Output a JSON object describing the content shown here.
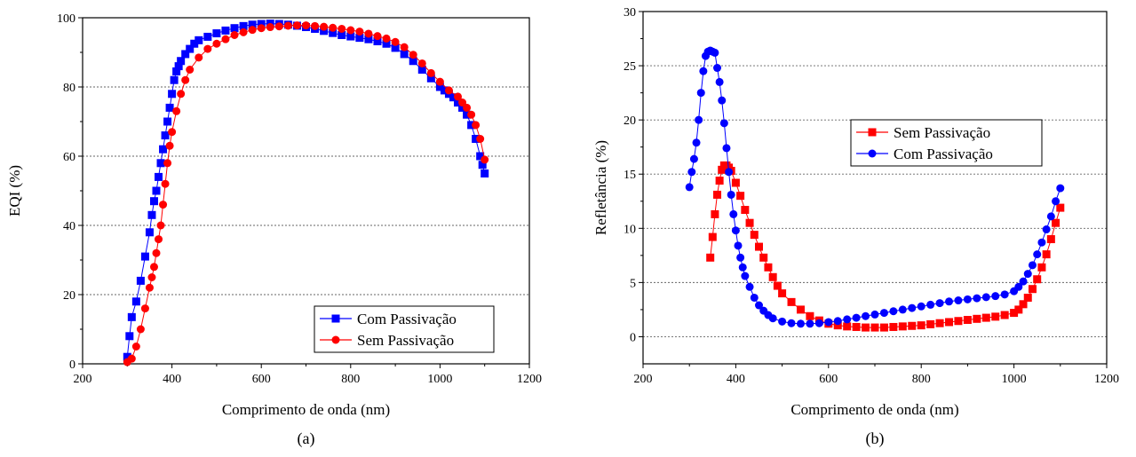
{
  "chart_data": [
    {
      "type": "scatter",
      "panel_label": "(a)",
      "xlabel": "Comprimento de onda (nm)",
      "ylabel": "EQI (%)",
      "xlim": [
        200,
        1200
      ],
      "ylim": [
        0,
        100
      ],
      "xticks": [
        200,
        400,
        600,
        800,
        1000,
        1200
      ],
      "yticks": [
        0,
        20,
        40,
        60,
        80,
        100
      ],
      "grid": "horizontal dashed",
      "legend_position": "bottom-right",
      "series": [
        {
          "name": "Com Passivação",
          "color": "#0000ff",
          "marker": "square",
          "points": [
            [
              300,
              2
            ],
            [
              305,
              8
            ],
            [
              310,
              13.5
            ],
            [
              320,
              18
            ],
            [
              330,
              24
            ],
            [
              340,
              31
            ],
            [
              350,
              38
            ],
            [
              355,
              43
            ],
            [
              360,
              47
            ],
            [
              365,
              50
            ],
            [
              370,
              54
            ],
            [
              375,
              58
            ],
            [
              380,
              62
            ],
            [
              385,
              66
            ],
            [
              390,
              70
            ],
            [
              395,
              74
            ],
            [
              400,
              78
            ],
            [
              405,
              82
            ],
            [
              410,
              84.5
            ],
            [
              415,
              86
            ],
            [
              420,
              87.5
            ],
            [
              430,
              89.5
            ],
            [
              440,
              91
            ],
            [
              450,
              92.5
            ],
            [
              460,
              93.5
            ],
            [
              480,
              94.5
            ],
            [
              500,
              95.5
            ],
            [
              520,
              96.3
            ],
            [
              540,
              97
            ],
            [
              560,
              97.6
            ],
            [
              580,
              98
            ],
            [
              600,
              98.2
            ],
            [
              620,
              98.3
            ],
            [
              640,
              98.2
            ],
            [
              660,
              98
            ],
            [
              680,
              97.7
            ],
            [
              700,
              97.3
            ],
            [
              720,
              96.8
            ],
            [
              740,
              96.2
            ],
            [
              760,
              95.6
            ],
            [
              780,
              95
            ],
            [
              800,
              94.6
            ],
            [
              820,
              94.2
            ],
            [
              840,
              93.8
            ],
            [
              860,
              93.2
            ],
            [
              880,
              92.5
            ],
            [
              900,
              91.3
            ],
            [
              920,
              89.5
            ],
            [
              940,
              87.5
            ],
            [
              960,
              85
            ],
            [
              980,
              82.5
            ],
            [
              1000,
              80
            ],
            [
              1010,
              79
            ],
            [
              1020,
              78
            ],
            [
              1030,
              77
            ],
            [
              1040,
              75.5
            ],
            [
              1050,
              74
            ],
            [
              1060,
              72
            ],
            [
              1070,
              69
            ],
            [
              1080,
              65
            ],
            [
              1090,
              60
            ],
            [
              1095,
              57.5
            ],
            [
              1100,
              55
            ]
          ]
        },
        {
          "name": "Sem Passivação",
          "color": "#ff0000",
          "marker": "circle",
          "points": [
            [
              300,
              0.5
            ],
            [
              310,
              1.5
            ],
            [
              320,
              5
            ],
            [
              330,
              10
            ],
            [
              340,
              16
            ],
            [
              350,
              22
            ],
            [
              355,
              25
            ],
            [
              360,
              28
            ],
            [
              365,
              32
            ],
            [
              370,
              36
            ],
            [
              375,
              40
            ],
            [
              380,
              46
            ],
            [
              385,
              52
            ],
            [
              390,
              58
            ],
            [
              395,
              63
            ],
            [
              400,
              67
            ],
            [
              410,
              73
            ],
            [
              420,
              78
            ],
            [
              430,
              82
            ],
            [
              440,
              85
            ],
            [
              460,
              88.5
            ],
            [
              480,
              91
            ],
            [
              500,
              92.5
            ],
            [
              520,
              93.8
            ],
            [
              540,
              95
            ],
            [
              560,
              95.8
            ],
            [
              580,
              96.5
            ],
            [
              600,
              97
            ],
            [
              620,
              97.3
            ],
            [
              640,
              97.5
            ],
            [
              660,
              97.7
            ],
            [
              680,
              97.8
            ],
            [
              700,
              97.8
            ],
            [
              720,
              97.6
            ],
            [
              740,
              97.4
            ],
            [
              760,
              97.1
            ],
            [
              780,
              96.8
            ],
            [
              800,
              96.4
            ],
            [
              820,
              96
            ],
            [
              840,
              95.4
            ],
            [
              860,
              94.7
            ],
            [
              880,
              94
            ],
            [
              900,
              93
            ],
            [
              920,
              91.5
            ],
            [
              940,
              89.3
            ],
            [
              960,
              86.8
            ],
            [
              980,
              84
            ],
            [
              1000,
              81.5
            ],
            [
              1020,
              79
            ],
            [
              1040,
              77.2
            ],
            [
              1050,
              75.5
            ],
            [
              1060,
              74
            ],
            [
              1070,
              72
            ],
            [
              1080,
              69
            ],
            [
              1090,
              65
            ],
            [
              1100,
              59
            ]
          ]
        }
      ]
    },
    {
      "type": "scatter",
      "panel_label": "(b)",
      "xlabel": "Comprimento de onda (nm)",
      "ylabel": "Refletância (%)",
      "xlim": [
        200,
        1200
      ],
      "ylim": [
        -2.5,
        30
      ],
      "xticks": [
        200,
        400,
        600,
        800,
        1000,
        1200
      ],
      "yticks": [
        0,
        5,
        10,
        15,
        20,
        25,
        30
      ],
      "grid": "horizontal dashed",
      "legend_position": "top-center",
      "series": [
        {
          "name": "Sem Passivação",
          "color": "#ff0000",
          "marker": "square",
          "points": [
            [
              345,
              7.3
            ],
            [
              350,
              9.2
            ],
            [
              355,
              11.3
            ],
            [
              360,
              13.1
            ],
            [
              365,
              14.4
            ],
            [
              370,
              15.4
            ],
            [
              375,
              15.8
            ],
            [
              380,
              15.8
            ],
            [
              385,
              15.6
            ],
            [
              390,
              15.3
            ],
            [
              400,
              14.2
            ],
            [
              410,
              13
            ],
            [
              420,
              11.7
            ],
            [
              430,
              10.5
            ],
            [
              440,
              9.4
            ],
            [
              450,
              8.3
            ],
            [
              460,
              7.3
            ],
            [
              470,
              6.4
            ],
            [
              480,
              5.5
            ],
            [
              490,
              4.7
            ],
            [
              500,
              4
            ],
            [
              520,
              3.2
            ],
            [
              540,
              2.5
            ],
            [
              560,
              1.9
            ],
            [
              580,
              1.5
            ],
            [
              600,
              1.2
            ],
            [
              620,
              1.05
            ],
            [
              640,
              0.95
            ],
            [
              660,
              0.9
            ],
            [
              680,
              0.85
            ],
            [
              700,
              0.85
            ],
            [
              720,
              0.85
            ],
            [
              740,
              0.9
            ],
            [
              760,
              0.95
            ],
            [
              780,
              1
            ],
            [
              800,
              1.05
            ],
            [
              820,
              1.15
            ],
            [
              840,
              1.25
            ],
            [
              860,
              1.35
            ],
            [
              880,
              1.45
            ],
            [
              900,
              1.55
            ],
            [
              920,
              1.65
            ],
            [
              940,
              1.75
            ],
            [
              960,
              1.85
            ],
            [
              980,
              2
            ],
            [
              1000,
              2.2
            ],
            [
              1010,
              2.5
            ],
            [
              1020,
              3
            ],
            [
              1030,
              3.6
            ],
            [
              1040,
              4.4
            ],
            [
              1050,
              5.3
            ],
            [
              1060,
              6.4
            ],
            [
              1070,
              7.6
            ],
            [
              1080,
              9
            ],
            [
              1090,
              10.5
            ],
            [
              1100,
              11.9
            ]
          ]
        },
        {
          "name": "Com Passivação",
          "color": "#0000ff",
          "marker": "circle",
          "points": [
            [
              300,
              13.8
            ],
            [
              305,
              15.2
            ],
            [
              310,
              16.4
            ],
            [
              315,
              17.9
            ],
            [
              320,
              20
            ],
            [
              325,
              22.5
            ],
            [
              330,
              24.5
            ],
            [
              335,
              25.9
            ],
            [
              340,
              26.3
            ],
            [
              345,
              26.4
            ],
            [
              350,
              26.3
            ],
            [
              355,
              26.2
            ],
            [
              360,
              24.8
            ],
            [
              365,
              23.5
            ],
            [
              370,
              21.8
            ],
            [
              375,
              19.7
            ],
            [
              380,
              17.4
            ],
            [
              385,
              15.2
            ],
            [
              390,
              13.1
            ],
            [
              395,
              11.3
            ],
            [
              400,
              9.8
            ],
            [
              405,
              8.4
            ],
            [
              410,
              7.3
            ],
            [
              415,
              6.4
            ],
            [
              420,
              5.6
            ],
            [
              430,
              4.6
            ],
            [
              440,
              3.6
            ],
            [
              450,
              2.9
            ],
            [
              460,
              2.4
            ],
            [
              470,
              2
            ],
            [
              480,
              1.7
            ],
            [
              500,
              1.4
            ],
            [
              520,
              1.25
            ],
            [
              540,
              1.2
            ],
            [
              560,
              1.2
            ],
            [
              580,
              1.25
            ],
            [
              600,
              1.35
            ],
            [
              620,
              1.45
            ],
            [
              640,
              1.6
            ],
            [
              660,
              1.75
            ],
            [
              680,
              1.9
            ],
            [
              700,
              2.05
            ],
            [
              720,
              2.2
            ],
            [
              740,
              2.35
            ],
            [
              760,
              2.5
            ],
            [
              780,
              2.65
            ],
            [
              800,
              2.8
            ],
            [
              820,
              2.95
            ],
            [
              840,
              3.1
            ],
            [
              860,
              3.25
            ],
            [
              880,
              3.35
            ],
            [
              900,
              3.45
            ],
            [
              920,
              3.55
            ],
            [
              940,
              3.65
            ],
            [
              960,
              3.75
            ],
            [
              980,
              3.9
            ],
            [
              1000,
              4.2
            ],
            [
              1010,
              4.6
            ],
            [
              1020,
              5.1
            ],
            [
              1030,
              5.8
            ],
            [
              1040,
              6.6
            ],
            [
              1050,
              7.6
            ],
            [
              1060,
              8.7
            ],
            [
              1070,
              9.9
            ],
            [
              1080,
              11.1
            ],
            [
              1090,
              12.5
            ],
            [
              1100,
              13.7
            ]
          ]
        }
      ]
    }
  ]
}
